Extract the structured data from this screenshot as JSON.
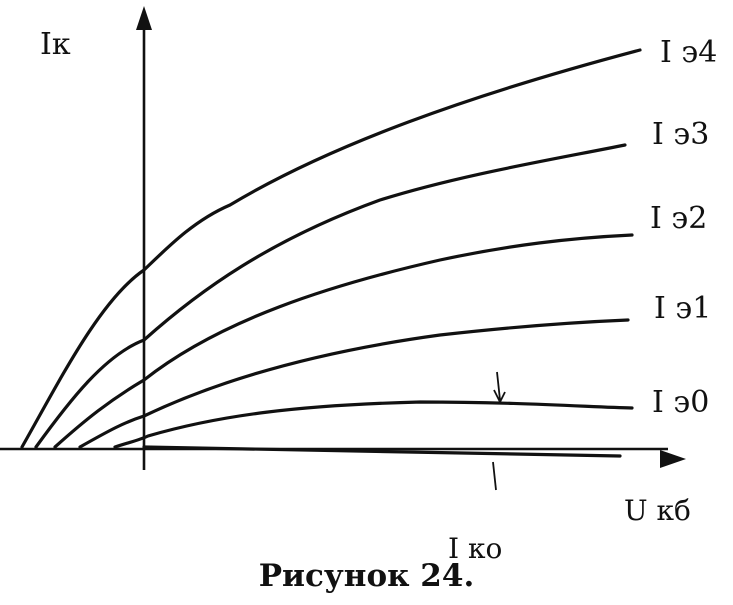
{
  "diagram": {
    "y_axis_label": "Iк",
    "x_axis_label": "U кб",
    "curves": [
      {
        "label": "I э4"
      },
      {
        "label": "I э3"
      },
      {
        "label": "I э2"
      },
      {
        "label": "I э1"
      },
      {
        "label": "I э0"
      }
    ],
    "reverse_current_label": "I ко",
    "caption": "Рисунок 24."
  }
}
